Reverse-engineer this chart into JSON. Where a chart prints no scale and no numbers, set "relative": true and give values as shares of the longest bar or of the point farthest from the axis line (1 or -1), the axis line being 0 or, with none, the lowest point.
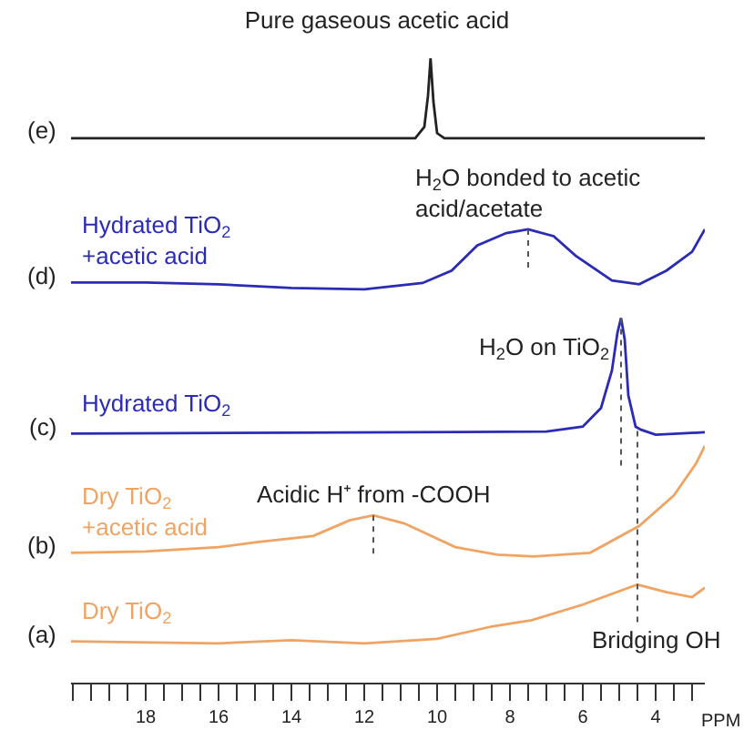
{
  "chart_data": {
    "type": "line",
    "relative": true,
    "title": "Pure gaseous acetic acid",
    "xlabel": "PPM",
    "xlim": [
      20.05,
      2.65
    ],
    "xticks": [
      {
        "value": 20,
        "label": null
      },
      {
        "value": 19.5,
        "label": null
      },
      {
        "value": 19,
        "label": null
      },
      {
        "value": 18.5,
        "label": null
      },
      18,
      {
        "value": 17.5,
        "label": null
      },
      {
        "value": 17,
        "label": null
      },
      {
        "value": 16.5,
        "label": null
      },
      16,
      {
        "value": 15.5,
        "label": null
      },
      {
        "value": 15,
        "label": null
      },
      {
        "value": 14.5,
        "label": null
      },
      14,
      {
        "value": 13.5,
        "label": null
      },
      {
        "value": 13,
        "label": null
      },
      {
        "value": 12.5,
        "label": null
      },
      12,
      {
        "value": 11.5,
        "label": null
      },
      {
        "value": 11,
        "label": null
      },
      {
        "value": 10.5,
        "label": null
      },
      10,
      {
        "value": 9.5,
        "label": null
      },
      {
        "value": 9,
        "label": null
      },
      {
        "value": 8.5,
        "label": null
      },
      8,
      {
        "value": 7.5,
        "label": null
      },
      {
        "value": 7,
        "label": null
      },
      {
        "value": 6.5,
        "label": null
      },
      6,
      {
        "value": 5.5,
        "label": null
      },
      {
        "value": 5,
        "label": null
      },
      {
        "value": 4.5,
        "label": null
      },
      4,
      {
        "value": 3.5,
        "label": null
      },
      {
        "value": 3,
        "label": null
      }
    ],
    "tick_labels": "x",
    "grid": false,
    "legend": false,
    "marker": "none",
    "line_style": "solid",
    "series": [
      {
        "name": "Dry TiO$_{2}$",
        "color": "#f0a464",
        "x": [
          20.05,
          16,
          14,
          12,
          10,
          8.5,
          7.4,
          6,
          4.5,
          3.7,
          3.0,
          2.65
        ],
        "values": [
          0.066,
          0.063,
          0.068,
          0.063,
          0.07,
          0.09,
          0.1,
          0.125,
          0.157,
          0.145,
          0.137,
          0.152
        ]
      },
      {
        "name": "Dry TiO$_{2}$\n+acetic acid",
        "color": "#f0a464",
        "x": [
          20.05,
          18,
          16,
          14.95,
          13.4,
          12.4,
          11.75,
          10.9,
          9.5,
          8.35,
          7.35,
          5.8,
          4.45,
          3.5,
          2.9,
          2.65
        ],
        "values": [
          0.208,
          0.21,
          0.217,
          0.225,
          0.235,
          0.26,
          0.268,
          0.255,
          0.217,
          0.205,
          0.202,
          0.208,
          0.251,
          0.3,
          0.35,
          0.379
        ]
      },
      {
        "name": "Hydrated TiO$_{2}$",
        "color": "#2b2bb5",
        "x": [
          20.05,
          7,
          6,
          5.5,
          5.2,
          5.05,
          4.95,
          4.85,
          4.75,
          4.55,
          4.4,
          4,
          2.65
        ],
        "values": [
          0.399,
          0.402,
          0.41,
          0.44,
          0.5,
          0.56,
          0.584,
          0.55,
          0.46,
          0.41,
          0.405,
          0.397,
          0.401
        ]
      },
      {
        "name": "Hydrated TiO$_{2}$\n+acetic acid",
        "color": "#2b2bb5",
        "x": [
          20.05,
          18,
          16,
          14,
          12,
          10.4,
          9.6,
          8.9,
          8.1,
          7.5,
          6.8,
          6.2,
          5.2,
          4.45,
          3.7,
          3.0,
          2.65
        ],
        "values": [
          0.641,
          0.641,
          0.638,
          0.632,
          0.63,
          0.64,
          0.66,
          0.7,
          0.72,
          0.726,
          0.715,
          0.684,
          0.644,
          0.638,
          0.66,
          0.69,
          0.726
        ]
      },
      {
        "color": "#222222",
        "x": [
          20.05,
          15,
          10.6,
          10.35,
          10.25,
          10.18,
          10.1,
          10.0,
          9.8,
          2.65
        ],
        "values": [
          0.872,
          0.872,
          0.872,
          0.89,
          0.94,
          1.0,
          0.93,
          0.88,
          0.872,
          0.872
        ]
      }
    ],
    "annotations": [
      {
        "text": "(a)",
        "x": 20.05,
        "y": 0.066
      },
      {
        "text": "(b)",
        "x": 20.05,
        "y": 0.208
      },
      {
        "text": "(c)",
        "x": 20.05,
        "y": 0.399
      },
      {
        "text": "(d)",
        "x": 20.05,
        "y": 0.641
      },
      {
        "text": "(e)",
        "x": 20.05,
        "y": 0.872
      },
      {
        "text": "Acidic H⁺ from -COOH",
        "x": 11.75,
        "y": 0.268
      },
      {
        "text": "H$_{2}$O bonded to acetic\nacid/acetate",
        "x": 7.5,
        "y": 0.726
      },
      {
        "text": "H$_{2}$O on TiO$_{2}$",
        "x": 4.95,
        "y": 0.584
      },
      {
        "text": "Bridging OH",
        "x": 4.5,
        "y": 0.157
      }
    ]
  }
}
